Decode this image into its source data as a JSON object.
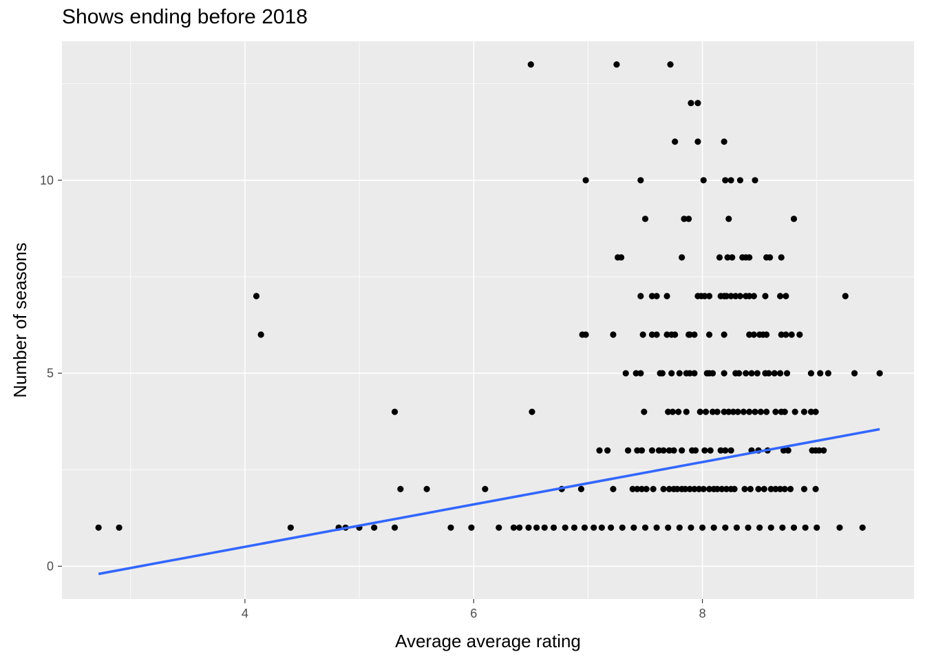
{
  "chart_data": {
    "type": "scatter",
    "title": "Shows ending before 2018",
    "xlabel": "Average average rating",
    "ylabel": "Number of seasons",
    "xlim": [
      2.4,
      9.85
    ],
    "ylim": [
      -0.85,
      13.6
    ],
    "x_ticks": [
      4,
      6,
      8
    ],
    "y_ticks": [
      0,
      5,
      10
    ],
    "grid": true,
    "colors": {
      "panel": "#ebebeb",
      "grid": "#ffffff",
      "points": "#000000",
      "trend": "#3366ff"
    },
    "trend_line": {
      "x": [
        2.72,
        9.55
      ],
      "y": [
        -0.2,
        3.55
      ]
    },
    "points": [
      [
        6.5,
        13
      ],
      [
        7.25,
        13
      ],
      [
        7.72,
        13
      ],
      [
        7.9,
        12
      ],
      [
        7.96,
        12
      ],
      [
        7.76,
        11
      ],
      [
        7.96,
        11
      ],
      [
        8.19,
        11
      ],
      [
        6.98,
        10
      ],
      [
        7.46,
        10
      ],
      [
        8.01,
        10
      ],
      [
        8.2,
        10
      ],
      [
        8.25,
        10
      ],
      [
        8.33,
        10
      ],
      [
        8.46,
        10
      ],
      [
        7.5,
        9
      ],
      [
        7.84,
        9
      ],
      [
        7.88,
        9
      ],
      [
        8.23,
        9
      ],
      [
        8.8,
        9
      ],
      [
        7.26,
        8
      ],
      [
        7.29,
        8
      ],
      [
        7.82,
        8
      ],
      [
        8.15,
        8
      ],
      [
        8.22,
        8
      ],
      [
        8.26,
        8
      ],
      [
        8.35,
        8
      ],
      [
        8.38,
        8
      ],
      [
        8.41,
        8
      ],
      [
        8.56,
        8
      ],
      [
        8.59,
        8
      ],
      [
        8.69,
        8
      ],
      [
        4.1,
        7
      ],
      [
        7.46,
        7
      ],
      [
        7.56,
        7
      ],
      [
        7.6,
        7
      ],
      [
        7.69,
        7
      ],
      [
        7.96,
        7
      ],
      [
        7.99,
        7
      ],
      [
        8.02,
        7
      ],
      [
        8.06,
        7
      ],
      [
        8.16,
        7
      ],
      [
        8.19,
        7
      ],
      [
        8.21,
        7
      ],
      [
        8.25,
        7
      ],
      [
        8.29,
        7
      ],
      [
        8.33,
        7
      ],
      [
        8.38,
        7
      ],
      [
        8.41,
        7
      ],
      [
        8.45,
        7
      ],
      [
        8.55,
        7
      ],
      [
        8.68,
        7
      ],
      [
        8.73,
        7
      ],
      [
        9.25,
        7
      ],
      [
        4.14,
        6
      ],
      [
        6.95,
        6
      ],
      [
        6.98,
        6
      ],
      [
        7.22,
        6
      ],
      [
        7.48,
        6
      ],
      [
        7.56,
        6
      ],
      [
        7.6,
        6
      ],
      [
        7.69,
        6
      ],
      [
        7.73,
        6
      ],
      [
        7.76,
        6
      ],
      [
        7.88,
        6
      ],
      [
        7.89,
        6
      ],
      [
        7.93,
        6
      ],
      [
        8.06,
        6
      ],
      [
        8.19,
        6
      ],
      [
        8.41,
        6
      ],
      [
        8.45,
        6
      ],
      [
        8.5,
        6
      ],
      [
        8.53,
        6
      ],
      [
        8.56,
        6
      ],
      [
        8.69,
        6
      ],
      [
        8.73,
        6
      ],
      [
        8.78,
        6
      ],
      [
        8.85,
        6
      ],
      [
        7.33,
        5
      ],
      [
        7.42,
        5
      ],
      [
        7.46,
        5
      ],
      [
        7.63,
        5
      ],
      [
        7.65,
        5
      ],
      [
        7.73,
        5
      ],
      [
        7.8,
        5
      ],
      [
        7.86,
        5
      ],
      [
        7.89,
        5
      ],
      [
        7.93,
        5
      ],
      [
        8.04,
        5
      ],
      [
        8.06,
        5
      ],
      [
        8.09,
        5
      ],
      [
        8.19,
        5
      ],
      [
        8.29,
        5
      ],
      [
        8.32,
        5
      ],
      [
        8.38,
        5
      ],
      [
        8.43,
        5
      ],
      [
        8.48,
        5
      ],
      [
        8.55,
        5
      ],
      [
        8.58,
        5
      ],
      [
        8.63,
        5
      ],
      [
        8.68,
        5
      ],
      [
        8.74,
        5
      ],
      [
        8.95,
        5
      ],
      [
        9.03,
        5
      ],
      [
        9.1,
        5
      ],
      [
        9.33,
        5
      ],
      [
        9.55,
        5
      ],
      [
        5.31,
        4
      ],
      [
        6.51,
        4
      ],
      [
        7.49,
        4
      ],
      [
        7.7,
        4
      ],
      [
        7.74,
        4
      ],
      [
        7.79,
        4
      ],
      [
        7.86,
        4
      ],
      [
        7.98,
        4
      ],
      [
        8.03,
        4
      ],
      [
        8.09,
        4
      ],
      [
        8.13,
        4
      ],
      [
        8.19,
        4
      ],
      [
        8.23,
        4
      ],
      [
        8.27,
        4
      ],
      [
        8.31,
        4
      ],
      [
        8.36,
        4
      ],
      [
        8.41,
        4
      ],
      [
        8.46,
        4
      ],
      [
        8.51,
        4
      ],
      [
        8.56,
        4
      ],
      [
        8.64,
        4
      ],
      [
        8.69,
        4
      ],
      [
        8.72,
        4
      ],
      [
        8.81,
        4
      ],
      [
        8.89,
        4
      ],
      [
        8.95,
        4
      ],
      [
        8.99,
        4
      ],
      [
        7.1,
        3
      ],
      [
        7.17,
        3
      ],
      [
        7.35,
        3
      ],
      [
        7.43,
        3
      ],
      [
        7.47,
        3
      ],
      [
        7.56,
        3
      ],
      [
        7.62,
        3
      ],
      [
        7.66,
        3
      ],
      [
        7.71,
        3
      ],
      [
        7.75,
        3
      ],
      [
        7.82,
        3
      ],
      [
        7.91,
        3
      ],
      [
        7.94,
        3
      ],
      [
        8.02,
        3
      ],
      [
        8.07,
        3
      ],
      [
        8.16,
        3
      ],
      [
        8.2,
        3
      ],
      [
        8.25,
        3
      ],
      [
        8.43,
        3
      ],
      [
        8.49,
        3
      ],
      [
        8.57,
        3
      ],
      [
        8.71,
        3
      ],
      [
        8.75,
        3
      ],
      [
        8.96,
        3
      ],
      [
        8.99,
        3
      ],
      [
        9.02,
        3
      ],
      [
        9.06,
        3
      ],
      [
        5.36,
        2
      ],
      [
        5.59,
        2
      ],
      [
        6.1,
        2
      ],
      [
        6.77,
        2
      ],
      [
        6.94,
        2
      ],
      [
        7.22,
        2
      ],
      [
        7.39,
        2
      ],
      [
        7.43,
        2
      ],
      [
        7.47,
        2
      ],
      [
        7.51,
        2
      ],
      [
        7.57,
        2
      ],
      [
        7.66,
        2
      ],
      [
        7.71,
        2
      ],
      [
        7.75,
        2
      ],
      [
        7.78,
        2
      ],
      [
        7.82,
        2
      ],
      [
        7.85,
        2
      ],
      [
        7.89,
        2
      ],
      [
        7.93,
        2
      ],
      [
        7.97,
        2
      ],
      [
        8.01,
        2
      ],
      [
        8.06,
        2
      ],
      [
        8.1,
        2
      ],
      [
        8.13,
        2
      ],
      [
        8.17,
        2
      ],
      [
        8.21,
        2
      ],
      [
        8.25,
        2
      ],
      [
        8.28,
        2
      ],
      [
        8.37,
        2
      ],
      [
        8.42,
        2
      ],
      [
        8.49,
        2
      ],
      [
        8.54,
        2
      ],
      [
        8.6,
        2
      ],
      [
        8.64,
        2
      ],
      [
        8.68,
        2
      ],
      [
        8.72,
        2
      ],
      [
        8.77,
        2
      ],
      [
        8.89,
        2
      ],
      [
        8.99,
        2
      ],
      [
        2.72,
        1
      ],
      [
        2.9,
        1
      ],
      [
        4.4,
        1
      ],
      [
        4.82,
        1
      ],
      [
        4.88,
        1
      ],
      [
        5.0,
        1
      ],
      [
        5.13,
        1
      ],
      [
        5.31,
        1
      ],
      [
        5.8,
        1
      ],
      [
        5.98,
        1
      ],
      [
        6.22,
        1
      ],
      [
        6.35,
        1
      ],
      [
        6.4,
        1
      ],
      [
        6.48,
        1
      ],
      [
        6.55,
        1
      ],
      [
        6.62,
        1
      ],
      [
        6.7,
        1
      ],
      [
        6.8,
        1
      ],
      [
        6.88,
        1
      ],
      [
        6.97,
        1
      ],
      [
        7.05,
        1
      ],
      [
        7.12,
        1
      ],
      [
        7.2,
        1
      ],
      [
        7.3,
        1
      ],
      [
        7.4,
        1
      ],
      [
        7.5,
        1
      ],
      [
        7.6,
        1
      ],
      [
        7.7,
        1
      ],
      [
        7.8,
        1
      ],
      [
        7.9,
        1
      ],
      [
        8.0,
        1
      ],
      [
        8.1,
        1
      ],
      [
        8.2,
        1
      ],
      [
        8.3,
        1
      ],
      [
        8.4,
        1
      ],
      [
        8.5,
        1
      ],
      [
        8.6,
        1
      ],
      [
        8.7,
        1
      ],
      [
        8.8,
        1
      ],
      [
        8.9,
        1
      ],
      [
        9.0,
        1
      ],
      [
        9.2,
        1
      ],
      [
        9.4,
        1
      ]
    ]
  }
}
